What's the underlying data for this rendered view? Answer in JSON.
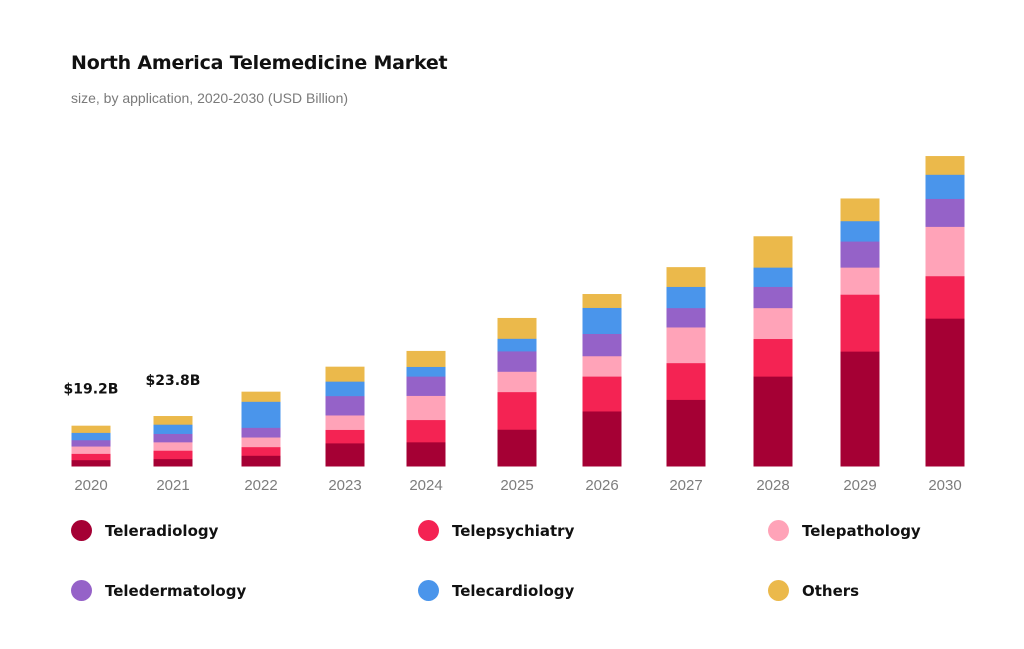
{
  "chart_data": {
    "type": "bar",
    "stacked": true,
    "title": "North America Telemedicine Market",
    "subtitle": "size, by application, 2020-2030 (USD Billion)",
    "xlabel": "",
    "ylabel": "",
    "ylim": [
      0,
      160
    ],
    "grid": false,
    "legend_position": "bottom",
    "categories": [
      "2020",
      "2021",
      "2022",
      "2023",
      "2024",
      "2025",
      "2026",
      "2027",
      "2028",
      "2029",
      "2030"
    ],
    "series": [
      {
        "name": "Teleradiology",
        "color": "#A50034",
        "values": [
          3.0,
          3.5,
          5.1,
          11.0,
          11.5,
          17.5,
          26.2,
          31.7,
          42.8,
          54.7,
          70.4
        ]
      },
      {
        "name": "Telepsychiatry",
        "color": "#F42353",
        "values": [
          3.0,
          4.0,
          4.1,
          6.4,
          10.6,
          17.9,
          16.6,
          17.5,
          17.9,
          27.1,
          20.2
        ]
      },
      {
        "name": "Telepathology",
        "color": "#FFA3B8",
        "values": [
          3.5,
          4.0,
          4.6,
          6.9,
          11.5,
          9.7,
          9.7,
          17.0,
          14.7,
          12.9,
          23.5
        ]
      },
      {
        "name": "Teledermatology",
        "color": "#9562C8",
        "values": [
          3.0,
          4.0,
          4.6,
          9.2,
          9.2,
          9.7,
          10.6,
          9.2,
          10.1,
          12.4,
          13.3
        ]
      },
      {
        "name": "Telecardiology",
        "color": "#4A95EB",
        "values": [
          3.5,
          4.4,
          12.4,
          6.9,
          4.6,
          6.0,
          12.4,
          10.1,
          9.2,
          9.7,
          11.5
        ]
      },
      {
        "name": "Others",
        "color": "#EBB94B",
        "values": [
          3.2,
          3.9,
          4.6,
          6.9,
          7.4,
          9.7,
          6.4,
          9.2,
          14.7,
          10.6,
          8.7
        ]
      }
    ],
    "annotations": [
      {
        "category": "2020",
        "text": "$19.2B"
      },
      {
        "category": "2021",
        "text": "$23.8B"
      }
    ]
  }
}
